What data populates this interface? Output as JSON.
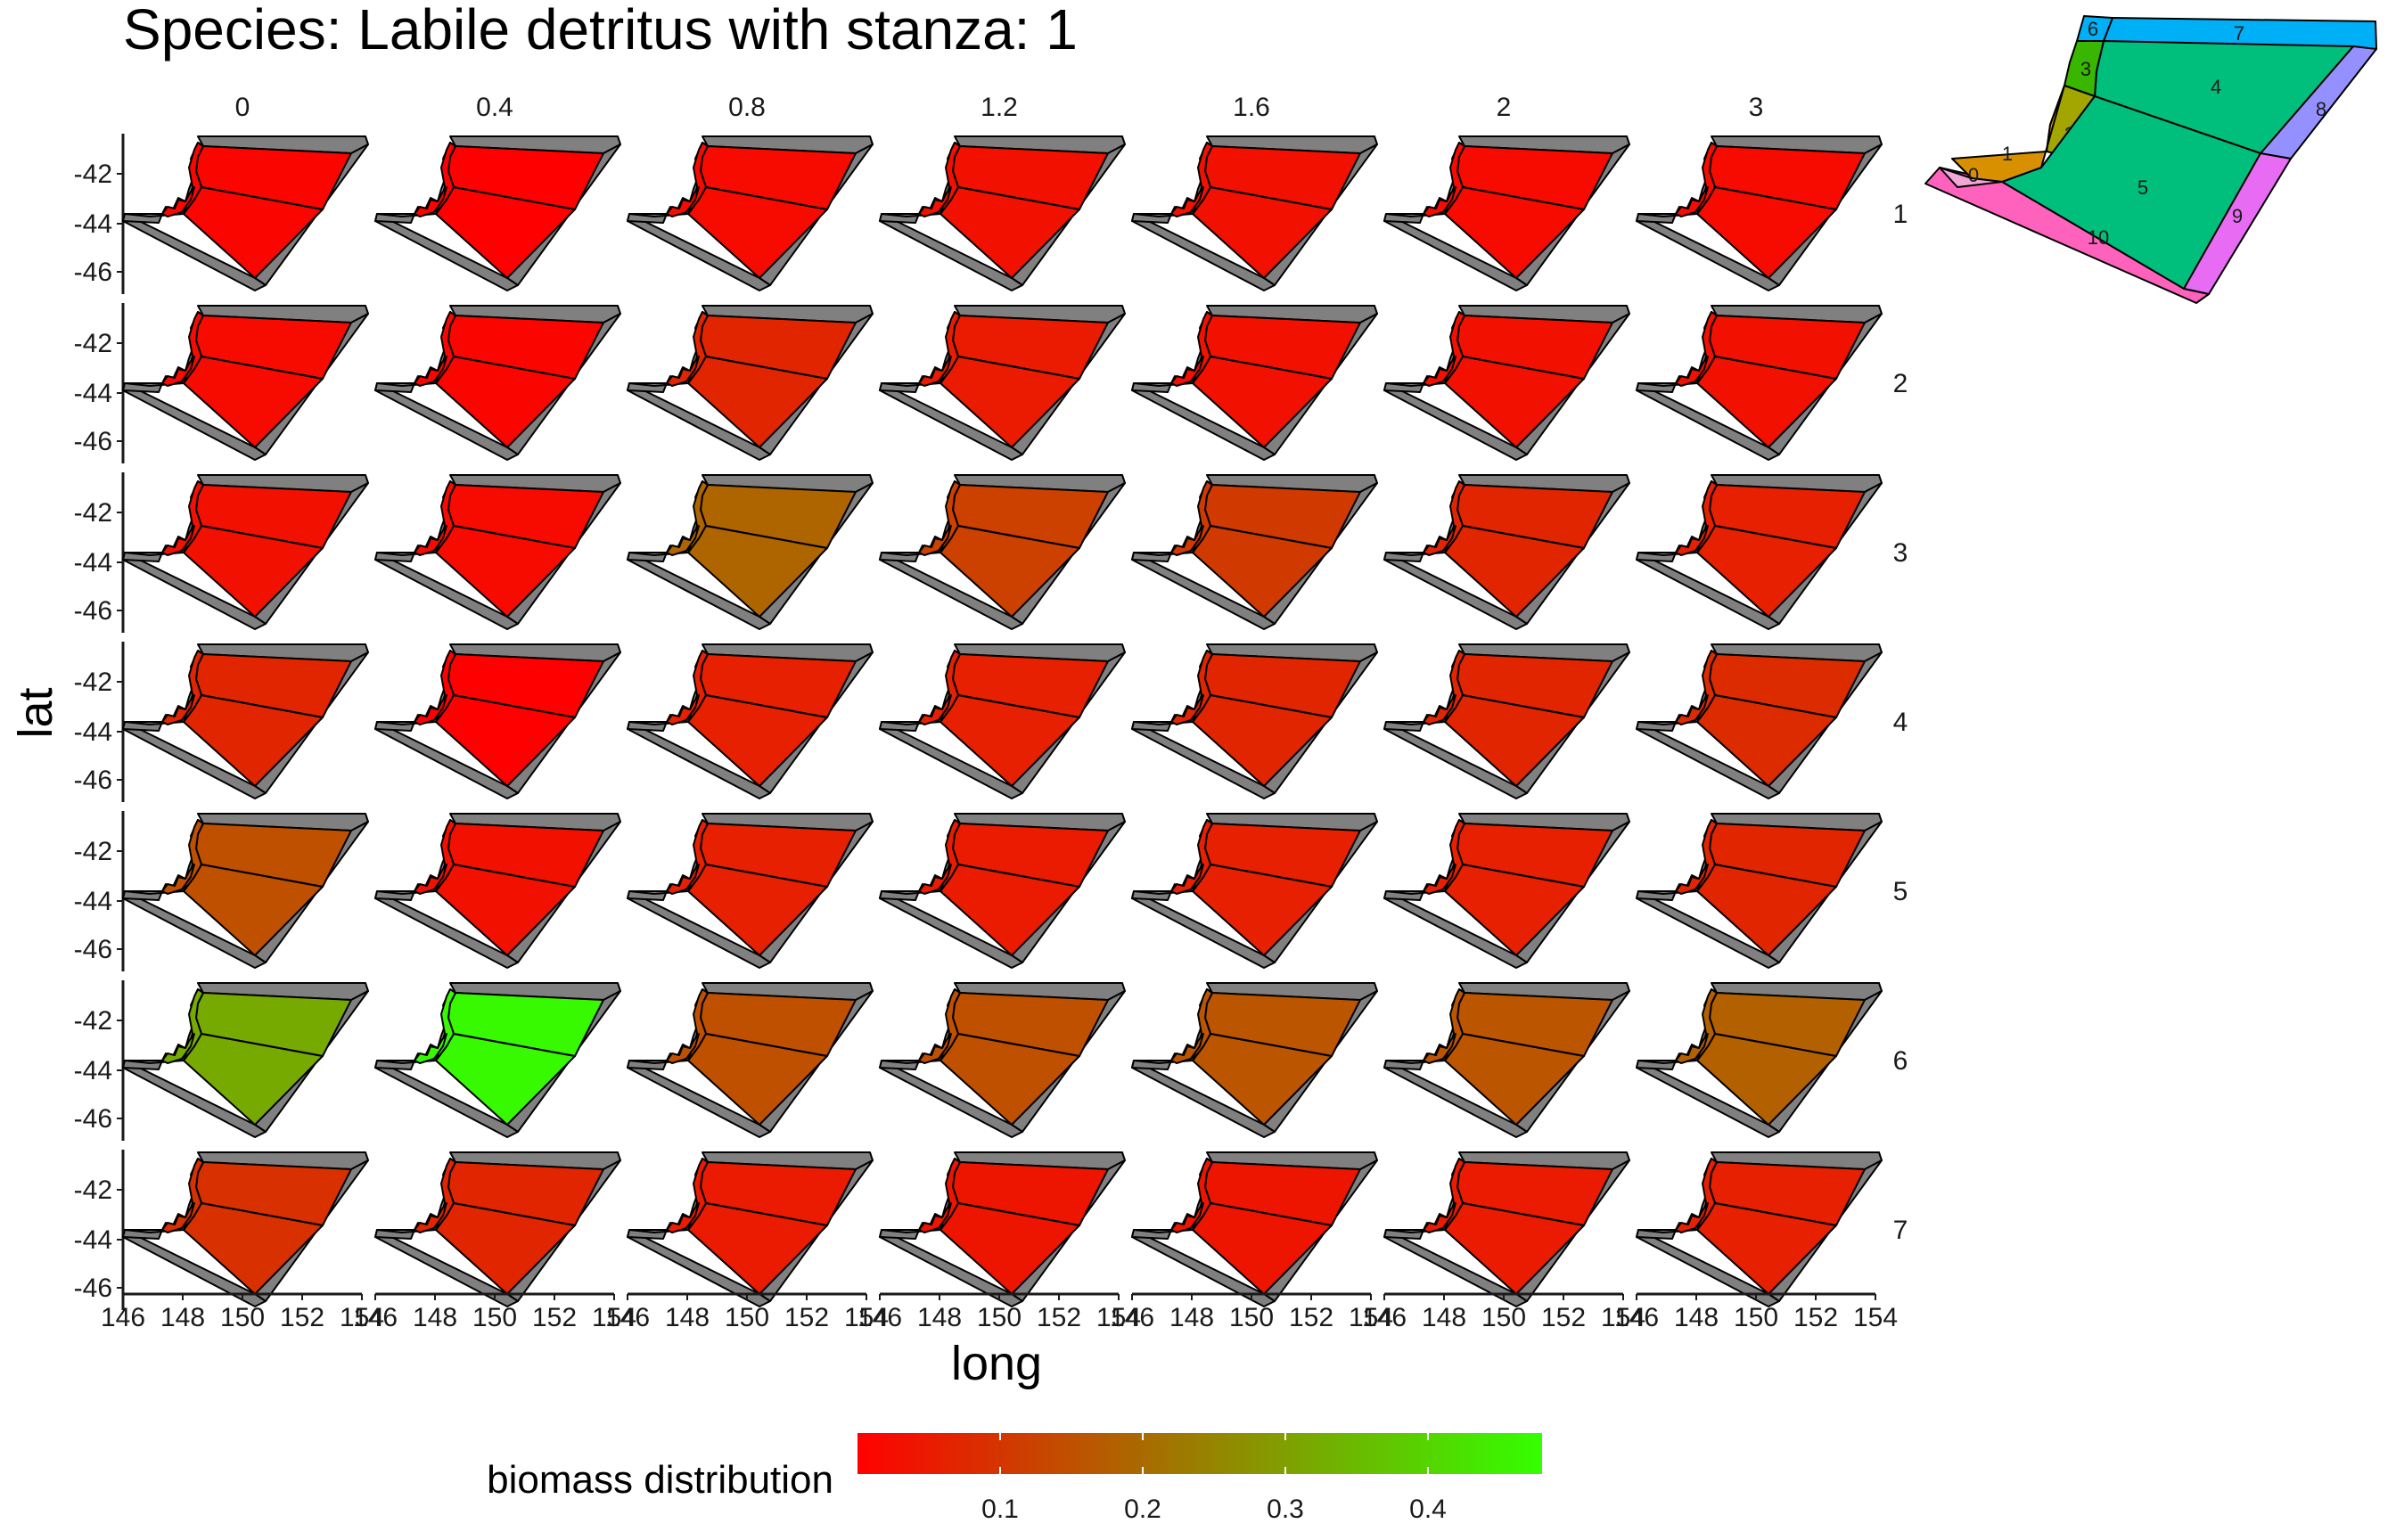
{
  "chart_data": {
    "type": "heatmap",
    "title": "Species: Labile detritus with stanza: 1",
    "xlabel": "long",
    "ylabel": "lat",
    "x_ticks": [
      "146",
      "148",
      "150",
      "152",
      "154"
    ],
    "y_ticks": [
      "-42",
      "-44",
      "-46"
    ],
    "xlim": [
      146,
      154
    ],
    "ylim": [
      -47,
      -40.5
    ],
    "col_facets": [
      "0",
      "0.4",
      "0.8",
      "1.2",
      "1.6",
      "2",
      "3"
    ],
    "row_facets": [
      "1",
      "2",
      "3",
      "4",
      "5",
      "6",
      "7"
    ],
    "legend": {
      "title": "biomass distribution",
      "ticks": [
        "0.1",
        "0.2",
        "0.3",
        "0.4"
      ],
      "range": [
        0,
        0.48
      ],
      "low_color": "#FF0000",
      "high_color": "#33FF00"
    },
    "values": [
      [
        0.01,
        0.0,
        0.02,
        0.03,
        0.03,
        0.02,
        0.02
      ],
      [
        0.02,
        0.01,
        0.07,
        0.05,
        0.03,
        0.03,
        0.03
      ],
      [
        0.03,
        0.02,
        0.19,
        0.12,
        0.11,
        0.07,
        0.06
      ],
      [
        0.07,
        0.0,
        0.06,
        0.06,
        0.07,
        0.07,
        0.08
      ],
      [
        0.15,
        0.03,
        0.06,
        0.05,
        0.06,
        0.06,
        0.07
      ],
      [
        0.32,
        0.47,
        0.15,
        0.15,
        0.16,
        0.16,
        0.18
      ],
      [
        0.09,
        0.07,
        0.05,
        0.04,
        0.04,
        0.05,
        0.06
      ]
    ],
    "inset_box_labels": [
      "0",
      "1",
      "2",
      "3",
      "4",
      "5",
      "6",
      "7",
      "8",
      "9",
      "10"
    ],
    "inset_box_colors": [
      "#F8766D",
      "#D89000",
      "#A3A500",
      "#39B600",
      "#00BF7D",
      "#00BFC4",
      "#00B0F6",
      "#9590FF",
      "#E76BF3",
      "#FF62BC",
      "#F1A7D6"
    ]
  }
}
